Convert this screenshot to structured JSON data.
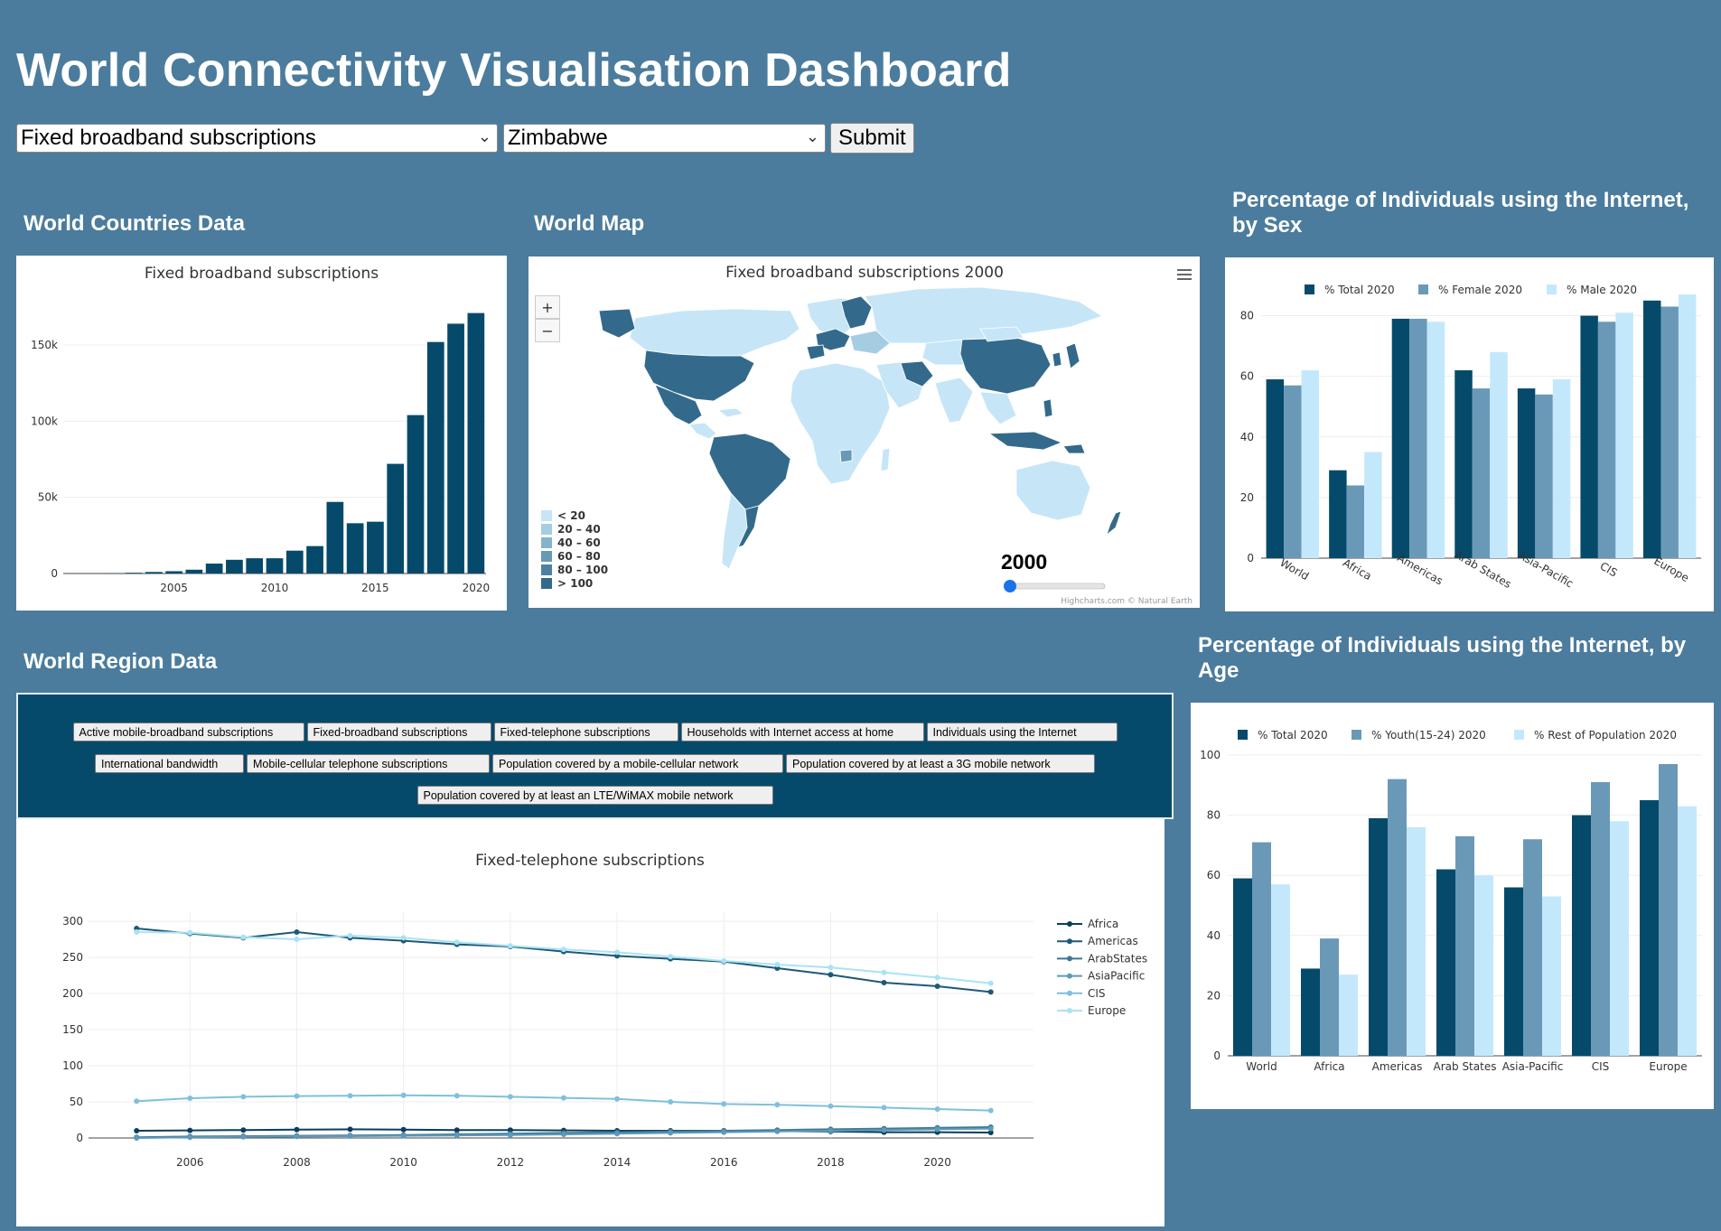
{
  "header": {
    "title": "World Connectivity Visualisation Dashboard"
  },
  "controls": {
    "indicator_select": "Fixed broadband subscriptions",
    "country_select": "Zimbabwe",
    "submit_label": "Submit"
  },
  "sections": {
    "countries": "World Countries Data",
    "map": "World Map",
    "sex": "Percentage of Individuals using the Internet, by Sex",
    "region": "World Region Data",
    "age": "Percentage of Individuals using the Internet, by Age"
  },
  "map": {
    "title": "Fixed broadband subscriptions 2000",
    "zoom_in": "+",
    "zoom_out": "−",
    "menu_icon": "hamburger-menu-icon",
    "legend": [
      "< 20",
      "20 – 40",
      "40 – 60",
      "60 – 80",
      "80 – 100",
      "> 100"
    ],
    "legend_colors": [
      "#c6e6f8",
      "#a5cde2",
      "#86b3cc",
      "#6899b6",
      "#4d80a0",
      "#336a8b"
    ],
    "year": "2000",
    "slider_value": 0,
    "credit": "Highcharts.com © Natural Earth"
  },
  "region_buttons": [
    [
      "Active mobile-broadband subscriptions",
      "Fixed-broadband subscriptions",
      "Fixed-telephone subscriptions",
      "Households with Internet access at home",
      "Individuals using the Internet"
    ],
    [
      "International bandwidth",
      "Mobile-cellular telephone subscriptions",
      "Population covered by a mobile-cellular network",
      "Population covered by at least a 3G mobile network"
    ],
    [
      "Population covered by at least an LTE/WiMAX mobile network"
    ]
  ],
  "colors": {
    "dark": "#054a6b",
    "mid": "#6a99b8",
    "light": "#c4e8fb",
    "bg": "#4b7c9d"
  },
  "chart_data": [
    {
      "id": "countries",
      "type": "bar",
      "title": "Fixed broadband subscriptions",
      "x": [
        2000,
        2001,
        2002,
        2003,
        2004,
        2005,
        2006,
        2007,
        2008,
        2009,
        2010,
        2011,
        2012,
        2013,
        2014,
        2015,
        2016,
        2017,
        2018,
        2019,
        2020
      ],
      "values": [
        0,
        0,
        200,
        500,
        1000,
        1500,
        2500,
        6500,
        9000,
        10000,
        10000,
        15000,
        18000,
        47000,
        33000,
        34000,
        72000,
        104000,
        152000,
        164000,
        171000
      ],
      "xticks": [
        2005,
        2010,
        2015,
        2020
      ],
      "yticks": [
        0,
        50000,
        100000,
        150000
      ],
      "ytick_labels": [
        "0",
        "50k",
        "100k",
        "150k"
      ],
      "ylim": [
        0,
        185000
      ]
    },
    {
      "id": "sex",
      "type": "bar",
      "categories": [
        "World",
        "Africa",
        "Americas",
        "Arab States",
        "Asia-Pacific",
        "CIS",
        "Europe"
      ],
      "series": [
        {
          "name": "% Total 2020",
          "values": [
            59,
            29,
            79,
            62,
            56,
            80,
            85
          ]
        },
        {
          "name": "% Female 2020",
          "values": [
            57,
            24,
            79,
            56,
            54,
            78,
            83
          ]
        },
        {
          "name": "% Male 2020",
          "values": [
            62,
            35,
            78,
            68,
            59,
            81,
            87
          ]
        }
      ],
      "yticks": [
        0,
        20,
        40,
        60,
        80
      ],
      "ylim": [
        0,
        90
      ]
    },
    {
      "id": "region",
      "type": "line",
      "title": "Fixed-telephone subscriptions",
      "x": [
        2005,
        2006,
        2007,
        2008,
        2009,
        2010,
        2011,
        2012,
        2013,
        2014,
        2015,
        2016,
        2017,
        2018,
        2019,
        2020,
        2021
      ],
      "series": [
        {
          "name": "Africa",
          "values": [
            10,
            10.5,
            11,
            11.5,
            12,
            11.5,
            11,
            11,
            10.5,
            10,
            10,
            10,
            9.5,
            9,
            8,
            8,
            7.5
          ]
        },
        {
          "name": "Americas",
          "values": [
            290,
            283,
            277,
            285,
            277,
            273,
            268,
            265,
            258,
            252,
            248,
            244,
            235,
            226,
            215,
            210,
            202
          ]
        },
        {
          "name": "ArabStates",
          "values": [
            1,
            2,
            2.5,
            3,
            3.5,
            4,
            5,
            6,
            7,
            8,
            9,
            10,
            11,
            12,
            13,
            14,
            15
          ]
        },
        {
          "name": "AsiaPacific",
          "values": [
            0,
            1,
            1.5,
            2,
            2.5,
            3,
            3.5,
            4,
            5,
            6,
            7,
            8,
            9,
            10,
            11,
            12,
            13
          ]
        },
        {
          "name": "CIS",
          "values": [
            51,
            55,
            57,
            58,
            58.5,
            59,
            58.5,
            57,
            55.5,
            54,
            50,
            47,
            46,
            44,
            42,
            40,
            38
          ]
        },
        {
          "name": "Europe",
          "values": [
            285,
            284,
            278,
            275,
            280,
            277,
            271,
            266,
            261,
            257,
            251,
            245,
            240,
            236,
            229,
            222,
            214
          ]
        }
      ],
      "xticks": [
        2006,
        2008,
        2010,
        2012,
        2014,
        2016,
        2018,
        2020
      ],
      "yticks": [
        0,
        50,
        100,
        150,
        200,
        250,
        300
      ],
      "ylim": [
        0,
        310
      ]
    },
    {
      "id": "age",
      "type": "bar",
      "categories": [
        "World",
        "Africa",
        "Americas",
        "Arab States",
        "Asia-Pacific",
        "CIS",
        "Europe"
      ],
      "series": [
        {
          "name": "% Total 2020",
          "values": [
            59,
            29,
            79,
            62,
            56,
            80,
            85
          ]
        },
        {
          "name": "% Youth(15-24) 2020",
          "values": [
            71,
            39,
            92,
            73,
            72,
            91,
            97
          ]
        },
        {
          "name": "% Rest of Population 2020",
          "values": [
            57,
            27,
            76,
            60,
            53,
            78,
            83
          ]
        }
      ],
      "yticks": [
        0,
        20,
        40,
        60,
        80,
        100
      ],
      "ylim": [
        0,
        100
      ]
    }
  ]
}
